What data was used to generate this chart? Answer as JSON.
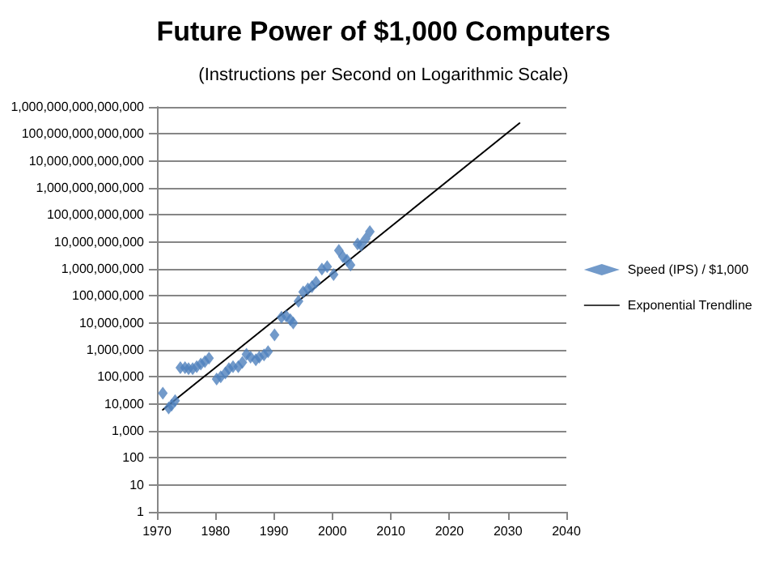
{
  "chart_data": {
    "type": "scatter",
    "title": "Future Power of $1,000 Computers",
    "subtitle": "(Instructions per Second on Logarithmic Scale)",
    "log": "y",
    "grid": "y",
    "legend": "right",
    "xlim": [
      1970,
      2040
    ],
    "xticks": [
      1970,
      1980,
      1990,
      2000,
      2010,
      2020,
      2030,
      2040
    ],
    "ylim": [
      1,
      1000000000000000.0
    ],
    "yticks": [
      {
        "value": 1,
        "label": "1"
      },
      {
        "value": 10,
        "label": "10"
      },
      {
        "value": 100,
        "label": "100"
      },
      {
        "value": 1000,
        "label": "1,000"
      },
      {
        "value": 10000,
        "label": "10,000"
      },
      {
        "value": 100000,
        "label": "100,000"
      },
      {
        "value": 1000000,
        "label": "1,000,000"
      },
      {
        "value": 10000000,
        "label": "10,000,000"
      },
      {
        "value": 100000000,
        "label": "100,000,000"
      },
      {
        "value": 1000000000,
        "label": "1,000,000,000"
      },
      {
        "value": 10000000000,
        "label": "10,000,000,000"
      },
      {
        "value": 100000000000,
        "label": "100,000,000,000"
      },
      {
        "value": 1000000000000,
        "label": "1,000,000,000,000"
      },
      {
        "value": 10000000000000,
        "label": "10,000,000,000,000"
      },
      {
        "value": 100000000000000,
        "label": "100,000,000,000,000"
      },
      {
        "value": 1000000000000000,
        "label": "1,000,000,000,000,000"
      }
    ],
    "series": [
      {
        "name": "Speed (IPS) / $1,000",
        "marker": "diamond",
        "color": "#4f81bd",
        "x": [
          1971.0,
          1972.0,
          1972.5,
          1973.1,
          1974.0,
          1974.8,
          1975.4,
          1976.1,
          1976.8,
          1977.5,
          1978.2,
          1978.9,
          1980.2,
          1980.9,
          1981.7,
          1982.3,
          1983.0,
          1983.9,
          1984.6,
          1985.3,
          1986.0,
          1986.9,
          1987.5,
          1988.3,
          1989.0,
          1990.1,
          1991.3,
          1992.1,
          1992.8,
          1993.3,
          1994.2,
          1995.0,
          1995.8,
          1996.5,
          1997.2,
          1998.2,
          1999.1,
          2000.2,
          2001.1,
          2001.8,
          2002.5,
          2003.1,
          2004.3,
          2004.9,
          2005.7,
          2006.4
        ],
        "values": [
          25000,
          7000,
          9000,
          13000,
          220000,
          220000,
          200000,
          200000,
          240000,
          300000,
          370000,
          490000,
          83000,
          100000,
          140000,
          200000,
          240000,
          240000,
          340000,
          680000,
          540000,
          430000,
          540000,
          650000,
          850000,
          3600000,
          16000000,
          18000000,
          13000000,
          10000000,
          63000000,
          140000000,
          180000000,
          220000000,
          320000000,
          980000000,
          1200000000,
          620000000,
          4800000000,
          2800000000,
          2100000000,
          1400000000,
          8300000000,
          7600000000,
          13000000000,
          24000000000
        ]
      },
      {
        "name": "Exponential Trendline",
        "type": "line",
        "marker": "none",
        "line_style": "solid",
        "color": "#000000",
        "x": [
          1971,
          2032
        ],
        "values": [
          6000,
          250000000000000
        ]
      }
    ]
  }
}
